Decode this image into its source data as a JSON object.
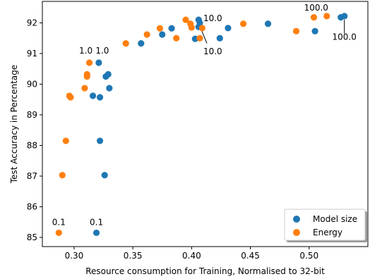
{
  "chart_data": {
    "type": "scatter",
    "title": "",
    "xlabel": "Resource consumption for Training, Normalised to 32-bit",
    "ylabel": "Test Accuracy in Percentage",
    "xlim": [
      0.273,
      0.55
    ],
    "ylim": [
      84.7,
      92.7
    ],
    "xticks": [
      0.3,
      0.35,
      0.4,
      0.45,
      0.5
    ],
    "xtick_labels": [
      "0.30",
      "0.35",
      "0.40",
      "0.45",
      "0.50"
    ],
    "yticks": [
      85,
      86,
      87,
      88,
      89,
      90,
      91,
      92
    ],
    "yticks_labels": [
      "85",
      "86",
      "87",
      "88",
      "89",
      "90",
      "91",
      "92"
    ],
    "grid": false,
    "legend": "lower-right",
    "series": [
      {
        "name": "Model size",
        "color": "#1f77b4",
        "points": [
          {
            "x": 0.319,
            "y": 85.15
          },
          {
            "x": 0.322,
            "y": 88.15
          },
          {
            "x": 0.326,
            "y": 87.03
          },
          {
            "x": 0.316,
            "y": 89.62
          },
          {
            "x": 0.322,
            "y": 89.57
          },
          {
            "x": 0.33,
            "y": 89.87
          },
          {
            "x": 0.327,
            "y": 90.25
          },
          {
            "x": 0.329,
            "y": 90.32
          },
          {
            "x": 0.321,
            "y": 90.7
          },
          {
            "x": 0.357,
            "y": 91.33
          },
          {
            "x": 0.375,
            "y": 91.62
          },
          {
            "x": 0.383,
            "y": 91.82
          },
          {
            "x": 0.403,
            "y": 91.48
          },
          {
            "x": 0.406,
            "y": 91.87
          },
          {
            "x": 0.406,
            "y": 92.1
          },
          {
            "x": 0.407,
            "y": 92.0
          },
          {
            "x": 0.424,
            "y": 91.5
          },
          {
            "x": 0.431,
            "y": 91.83
          },
          {
            "x": 0.465,
            "y": 91.97
          },
          {
            "x": 0.505,
            "y": 91.73
          },
          {
            "x": 0.527,
            "y": 92.18
          },
          {
            "x": 0.53,
            "y": 92.22
          }
        ]
      },
      {
        "name": "Energy",
        "color": "#ff7f0e",
        "points": [
          {
            "x": 0.287,
            "y": 85.15
          },
          {
            "x": 0.29,
            "y": 87.03
          },
          {
            "x": 0.293,
            "y": 88.15
          },
          {
            "x": 0.296,
            "y": 89.62
          },
          {
            "x": 0.297,
            "y": 89.57
          },
          {
            "x": 0.309,
            "y": 89.87
          },
          {
            "x": 0.311,
            "y": 90.25
          },
          {
            "x": 0.311,
            "y": 90.32
          },
          {
            "x": 0.313,
            "y": 90.7
          },
          {
            "x": 0.344,
            "y": 91.33
          },
          {
            "x": 0.362,
            "y": 91.62
          },
          {
            "x": 0.373,
            "y": 91.82
          },
          {
            "x": 0.387,
            "y": 91.5
          },
          {
            "x": 0.395,
            "y": 92.1
          },
          {
            "x": 0.399,
            "y": 91.97
          },
          {
            "x": 0.4,
            "y": 91.85
          },
          {
            "x": 0.407,
            "y": 91.5
          },
          {
            "x": 0.409,
            "y": 91.83
          },
          {
            "x": 0.444,
            "y": 91.97
          },
          {
            "x": 0.489,
            "y": 91.73
          },
          {
            "x": 0.504,
            "y": 92.18
          },
          {
            "x": 0.515,
            "y": 92.22
          }
        ]
      }
    ],
    "annotations": [
      {
        "text": "0.1",
        "x": 0.287,
        "y": 85.4
      },
      {
        "text": "0.1",
        "x": 0.319,
        "y": 85.4
      },
      {
        "text": "1.0",
        "x": 0.31,
        "y": 91.0
      },
      {
        "text": "1.0",
        "x": 0.324,
        "y": 91.0
      },
      {
        "text": "10.0",
        "x": 0.418,
        "y": 92.06
      },
      {
        "text": "10.0",
        "x": 0.418,
        "y": 90.98
      },
      {
        "text": "100.0",
        "x": 0.506,
        "y": 92.4
      },
      {
        "text": "100.0",
        "x": 0.53,
        "y": 91.45
      }
    ],
    "arrows": [
      {
        "from": [
          0.413,
          91.33
        ],
        "to": [
          0.408,
          91.8
        ]
      },
      {
        "from": [
          0.53,
          91.65
        ],
        "to": [
          0.53,
          92.1
        ]
      }
    ]
  }
}
